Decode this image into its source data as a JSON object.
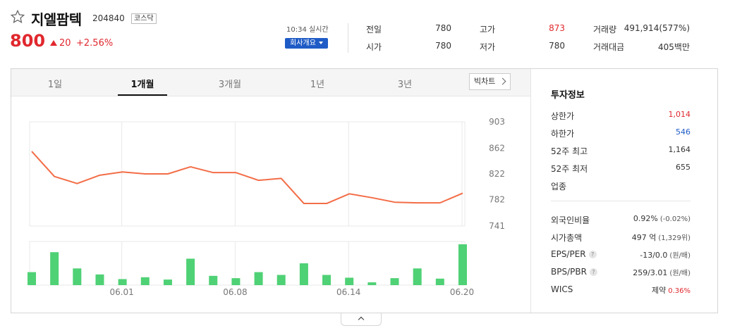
{
  "header": {
    "name": "지엘팜텍",
    "code": "204840",
    "market": "코스닥",
    "price": "800",
    "change": "20",
    "change_pct": "+2.56%",
    "realtime": "10:34 실시간",
    "company_btn": "회사개요"
  },
  "quote": [
    {
      "label": "전일",
      "value": "780",
      "color": "normal"
    },
    {
      "label": "고가",
      "value": "873",
      "color": "red"
    },
    {
      "label": "거래량",
      "value": "491,914(577%)",
      "color": "normal"
    },
    {
      "label": "시가",
      "value": "780",
      "color": "normal"
    },
    {
      "label": "저가",
      "value": "780",
      "color": "normal"
    },
    {
      "label": "거래대금",
      "value": "405백만",
      "color": "normal"
    }
  ],
  "tabs": [
    "1일",
    "1개월",
    "3개월",
    "1년",
    "3년"
  ],
  "active_tab": "1개월",
  "bigchart_label": "빅차트",
  "info": {
    "title": "투자정보",
    "rows1": [
      {
        "label": "상한가",
        "value": "1,014",
        "color": "red"
      },
      {
        "label": "하한가",
        "value": "546",
        "color": "blue"
      },
      {
        "label": "52주 최고",
        "value": "1,164",
        "color": "normal"
      },
      {
        "label": "52주 최저",
        "value": "655",
        "color": "normal"
      },
      {
        "label": "업종",
        "value": "",
        "color": "normal"
      }
    ],
    "rows2": [
      {
        "label": "외국인비율",
        "value": "0.92%",
        "sub": "(-0.02%)",
        "help": false
      },
      {
        "label": "시가총액",
        "value": "497 억",
        "sub": "(1,329위)",
        "help": false
      },
      {
        "label": "EPS/PER",
        "value": "-13/0.0",
        "sub": "(원/배)",
        "help": true
      },
      {
        "label": "BPS/PBR",
        "value": "259/3.01",
        "sub": "(원/배)",
        "help": true
      },
      {
        "label": "WICS",
        "value": "제약",
        "sub": "0.36%",
        "help": false
      }
    ]
  },
  "colors": {
    "up": "#e0282e",
    "down": "#1e5bc6",
    "line": "#f36d47",
    "volume": "#4fd175"
  },
  "chart_data": {
    "type": "line",
    "y_ticks": [
      903,
      862,
      822,
      782,
      741
    ],
    "ylim": [
      741,
      903
    ],
    "x_labels": [
      "06.01",
      "06.08",
      "06.14",
      "06.20"
    ],
    "x_label_index": [
      4,
      9,
      14,
      19
    ],
    "series": [
      {
        "values": [
          857,
          818,
          807,
          820,
          825,
          822,
          822,
          833,
          824,
          824,
          812,
          815,
          776,
          776,
          791,
          785,
          778,
          777,
          777,
          792
        ]
      }
    ],
    "volume": {
      "values": [
        28,
        71,
        36,
        23,
        13,
        17,
        12,
        57,
        20,
        15,
        28,
        22,
        47,
        22,
        16,
        6,
        15,
        36,
        14,
        88
      ]
    }
  }
}
